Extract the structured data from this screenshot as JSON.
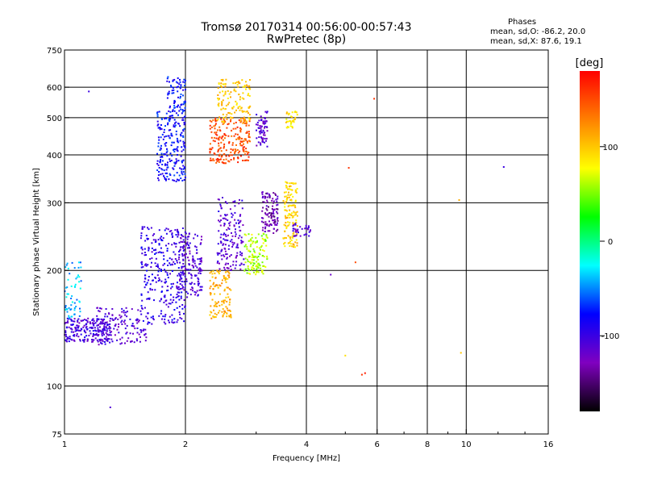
{
  "header": {
    "title_line1": "Tromsø 20170314 00:56:00-00:57:43",
    "title_line2": "RwPretec (8p)"
  },
  "stats": {
    "heading": "Phases",
    "line_o": "mean, sd,O: -86.2, 20.0",
    "line_x": "mean, sd,X:  87.6, 19.1"
  },
  "chart_data": {
    "type": "scatter",
    "xlabel": "Frequency [MHz]",
    "ylabel": "Stationary phase Virtual Height [km]",
    "xscale": "log",
    "yscale": "log",
    "xlim": [
      1,
      16
    ],
    "ylim": [
      75,
      750
    ],
    "xticks": [
      1,
      2,
      4,
      6,
      8,
      10,
      16
    ],
    "xtick_labels": [
      "1",
      "2",
      "4",
      "6",
      "8",
      "10",
      "16"
    ],
    "yticks": [
      75,
      100,
      200,
      300,
      400,
      500,
      600,
      750
    ],
    "ytick_labels": [
      "75",
      "100",
      "200",
      "300",
      "400",
      "500",
      "600",
      "750"
    ],
    "x_gridlines": [
      2,
      4,
      6,
      8,
      10
    ],
    "y_gridlines": [
      100,
      200,
      300,
      400,
      500,
      600
    ],
    "grid": true,
    "colorbar": {
      "label": "[deg]",
      "range": [
        -180,
        180
      ],
      "ticks": [
        100,
        0,
        -100
      ],
      "tick_labels": [
        "100",
        "0",
        "-100"
      ],
      "colors": [
        "#000000",
        "#8000c0",
        "#0000ff",
        "#00ffff",
        "#00ff00",
        "#ffff00",
        "#ff8000",
        "#ff0000"
      ]
    },
    "clusters": [
      {
        "f": [
          1.0,
          1.3
        ],
        "h": [
          130,
          150
        ],
        "phase": -105,
        "n": 220
      },
      {
        "f": [
          1.0,
          1.1
        ],
        "h": [
          150,
          210
        ],
        "phase": -40,
        "n": 60
      },
      {
        "f": [
          1.2,
          1.6
        ],
        "h": [
          128,
          160
        ],
        "phase": -110,
        "n": 140
      },
      {
        "f": [
          1.55,
          2.0
        ],
        "h": [
          145,
          260
        ],
        "phase": -95,
        "n": 300
      },
      {
        "f": [
          1.9,
          2.2
        ],
        "h": [
          170,
          250
        ],
        "phase": -110,
        "n": 160
      },
      {
        "f": [
          1.7,
          2.0
        ],
        "h": [
          340,
          520
        ],
        "phase": -80,
        "n": 220
      },
      {
        "f": [
          1.8,
          2.0
        ],
        "h": [
          520,
          640
        ],
        "phase": -75,
        "n": 70
      },
      {
        "f": [
          2.3,
          2.6
        ],
        "h": [
          150,
          200
        ],
        "phase": 110,
        "n": 120
      },
      {
        "f": [
          2.3,
          2.9
        ],
        "h": [
          380,
          500
        ],
        "phase": 150,
        "n": 220
      },
      {
        "f": [
          2.4,
          2.9
        ],
        "h": [
          480,
          630
        ],
        "phase": 100,
        "n": 130
      },
      {
        "f": [
          2.4,
          2.8
        ],
        "h": [
          200,
          310
        ],
        "phase": -110,
        "n": 160
      },
      {
        "f": [
          2.8,
          3.2
        ],
        "h": [
          195,
          250
        ],
        "phase": 60,
        "n": 130
      },
      {
        "f": [
          3.0,
          3.2
        ],
        "h": [
          420,
          520
        ],
        "phase": -115,
        "n": 70
      },
      {
        "f": [
          3.1,
          3.4
        ],
        "h": [
          250,
          320
        ],
        "phase": -130,
        "n": 110
      },
      {
        "f": [
          3.5,
          3.8
        ],
        "h": [
          230,
          340
        ],
        "phase": 95,
        "n": 140
      },
      {
        "f": [
          3.55,
          3.8
        ],
        "h": [
          470,
          520
        ],
        "phase": 90,
        "n": 35
      },
      {
        "f": [
          3.7,
          4.1
        ],
        "h": [
          245,
          265
        ],
        "phase": -110,
        "n": 35
      }
    ],
    "isolated_points": [
      {
        "x": 1.3,
        "y": 88,
        "phase": -110
      },
      {
        "x": 5.5,
        "y": 107,
        "phase": 160
      },
      {
        "x": 5.6,
        "y": 108,
        "phase": 170
      },
      {
        "x": 5.0,
        "y": 120,
        "phase": 90
      },
      {
        "x": 4.6,
        "y": 195,
        "phase": -120
      },
      {
        "x": 5.1,
        "y": 370,
        "phase": 160
      },
      {
        "x": 9.6,
        "y": 305,
        "phase": 110
      },
      {
        "x": 12.4,
        "y": 372,
        "phase": -100
      },
      {
        "x": 9.7,
        "y": 122,
        "phase": 100
      },
      {
        "x": 5.9,
        "y": 560,
        "phase": 160
      },
      {
        "x": 5.3,
        "y": 210,
        "phase": 150
      },
      {
        "x": 1.15,
        "y": 585,
        "phase": -100
      }
    ]
  }
}
